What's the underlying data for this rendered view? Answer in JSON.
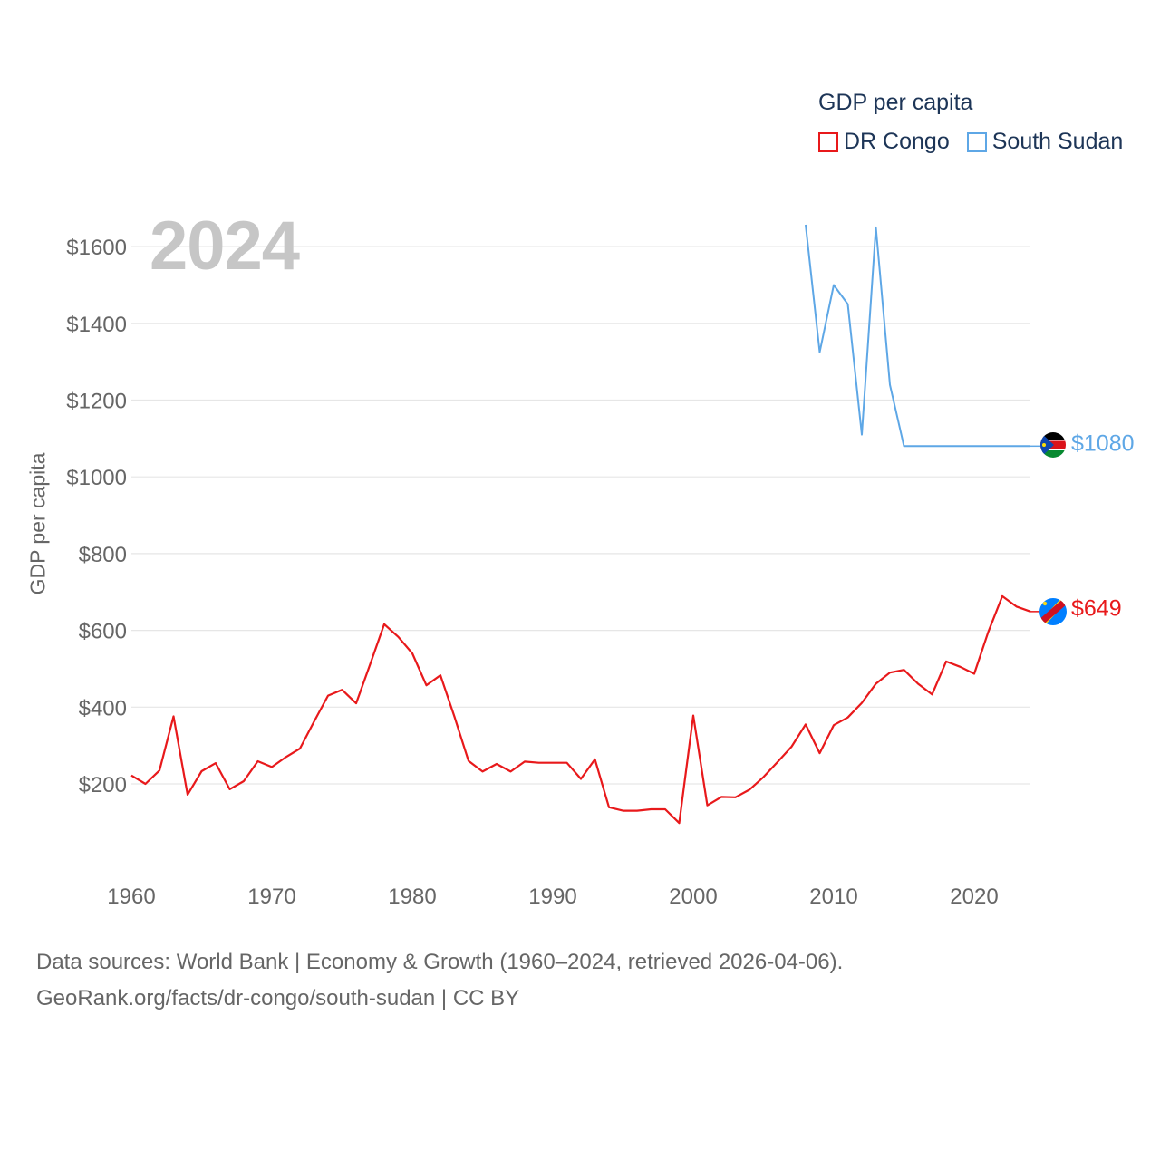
{
  "legend": {
    "title": "GDP per capita",
    "items": [
      {
        "label": "DR Congo",
        "color": "#e8191b"
      },
      {
        "label": "South Sudan",
        "color": "#5ea7e6"
      }
    ]
  },
  "year_watermark": "2024",
  "end_labels": {
    "dr_congo": "$649",
    "south_sudan": "$1080"
  },
  "footer": {
    "line1": "Data sources: World Bank | Economy & Growth (1960–2024, retrieved 2026-04-06).",
    "line2": "GeoRank.org/facts/dr-congo/south-sudan | CC BY"
  },
  "chart_data": {
    "type": "line",
    "title": "GDP per capita",
    "xlabel": "",
    "ylabel": "GDP per capita",
    "xlim": [
      1960,
      2024
    ],
    "ylim": [
      0,
      1700
    ],
    "x_ticks": [
      1960,
      1970,
      1980,
      1990,
      2000,
      2010,
      2020
    ],
    "y_ticks": [
      200,
      400,
      600,
      800,
      1000,
      1200,
      1400,
      1600
    ],
    "y_tick_labels": [
      "$200",
      "$400",
      "$600",
      "$800",
      "$1000",
      "$1200",
      "$1400",
      "$1600"
    ],
    "grid": true,
    "legend_position": "top-right",
    "series": [
      {
        "name": "DR Congo",
        "color": "#e8191b",
        "x": [
          1960,
          1961,
          1962,
          1963,
          1964,
          1965,
          1966,
          1967,
          1968,
          1969,
          1970,
          1971,
          1972,
          1973,
          1974,
          1975,
          1976,
          1977,
          1978,
          1979,
          1980,
          1981,
          1982,
          1983,
          1984,
          1985,
          1986,
          1987,
          1988,
          1989,
          1990,
          1991,
          1992,
          1993,
          1994,
          1995,
          1996,
          1997,
          1998,
          1999,
          2000,
          2001,
          2002,
          2003,
          2004,
          2005,
          2006,
          2007,
          2008,
          2009,
          2010,
          2011,
          2012,
          2013,
          2014,
          2015,
          2016,
          2017,
          2018,
          2019,
          2020,
          2021,
          2022,
          2023,
          2024
        ],
        "values": [
          222,
          200,
          235,
          376,
          172,
          233,
          254,
          186,
          207,
          259,
          244,
          270,
          292,
          362,
          430,
          445,
          410,
          512,
          616,
          583,
          540,
          457,
          483,
          375,
          260,
          232,
          252,
          232,
          258,
          255,
          255,
          255,
          213,
          264,
          139,
          130,
          130,
          134,
          134,
          98,
          378,
          144,
          166,
          165,
          185,
          218,
          257,
          297,
          355,
          280,
          353,
          373,
          411,
          461,
          490,
          497,
          461,
          433,
          519,
          505,
          487,
          596,
          689,
          662,
          649
        ]
      },
      {
        "name": "South Sudan",
        "color": "#5ea7e6",
        "x": [
          2008,
          2009,
          2010,
          2011,
          2012,
          2013,
          2014,
          2015,
          2016,
          2017,
          2018,
          2019,
          2020,
          2021,
          2022,
          2023,
          2024
        ],
        "values": [
          1657,
          1325,
          1500,
          1450,
          1110,
          1650,
          1240,
          1080,
          1080,
          1080,
          1080,
          1080,
          1080,
          1080,
          1080,
          1080,
          1080
        ]
      }
    ]
  }
}
